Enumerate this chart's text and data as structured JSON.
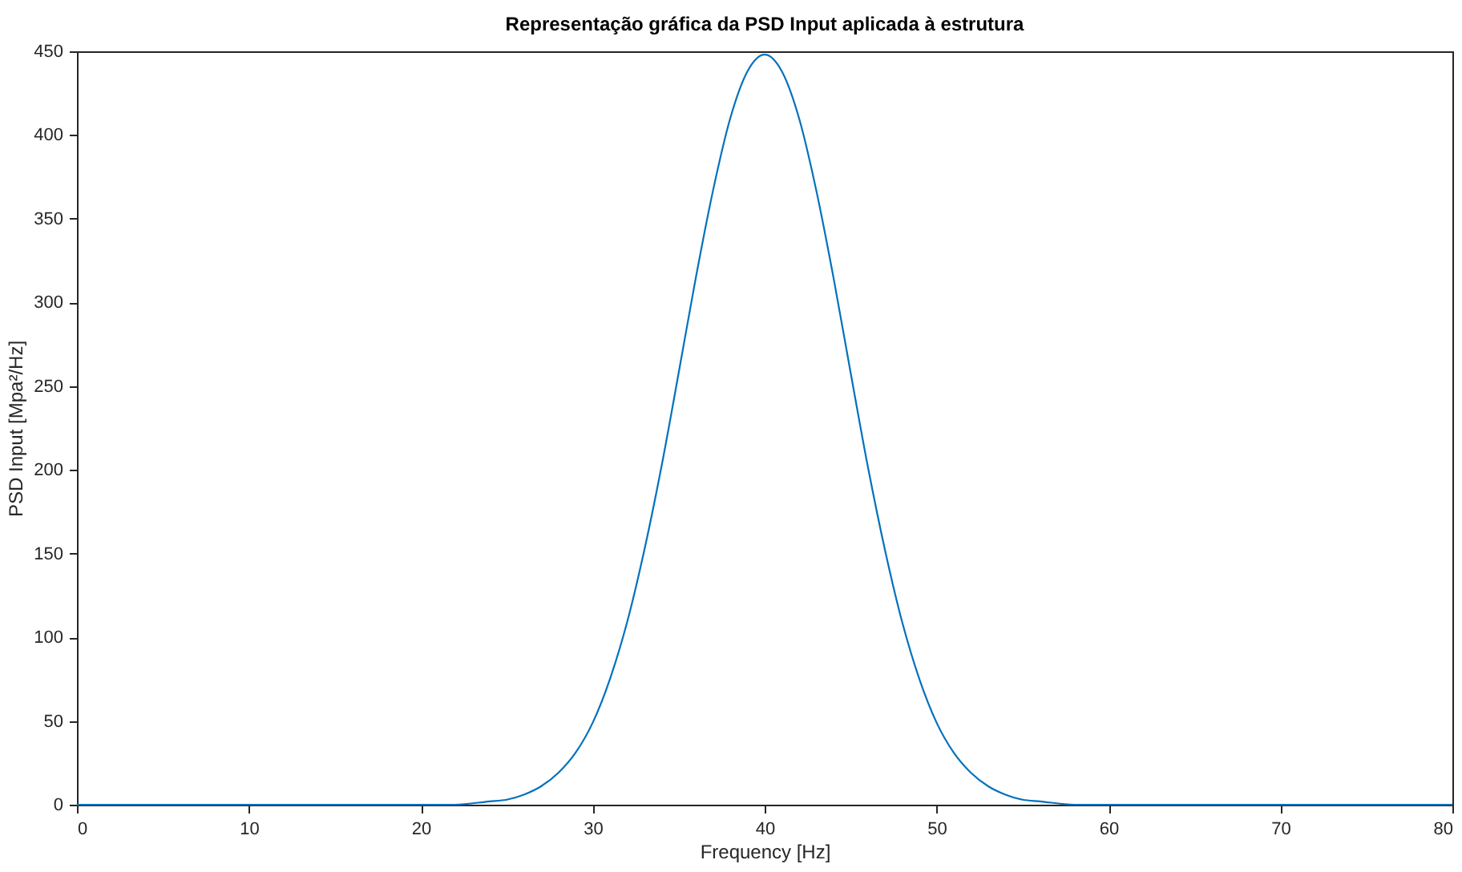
{
  "chart_data": {
    "type": "line",
    "title": "Representação gráfica da PSD Input aplicada à estrutura",
    "xlabel": "Frequency [Hz]",
    "ylabel": "PSD Input [Mpa²/Hz]",
    "x": [
      0,
      5,
      10,
      15,
      20,
      22,
      24,
      25,
      26,
      27,
      28,
      29,
      30,
      31,
      32,
      33,
      34,
      35,
      36,
      37,
      38,
      39,
      40,
      41,
      42,
      43,
      44,
      45,
      46,
      47,
      48,
      49,
      50,
      51,
      52,
      53,
      54,
      55,
      56,
      58,
      60,
      65,
      70,
      75,
      80
    ],
    "series": [
      {
        "color": "#0072bd",
        "values": [
          0,
          0,
          0,
          0,
          0,
          0,
          2,
          3,
          6,
          11,
          19,
          31,
          49,
          75,
          109,
          152,
          202,
          258,
          315,
          367,
          410,
          438,
          448,
          438,
          410,
          367,
          315,
          258,
          202,
          152,
          109,
          75,
          49,
          31,
          19,
          11,
          6,
          3,
          2,
          0,
          0,
          0,
          0,
          0,
          0
        ]
      }
    ],
    "xlim": [
      0,
      80
    ],
    "xticks": [
      0,
      10,
      20,
      30,
      40,
      50,
      60,
      70,
      80
    ],
    "ylim": [
      0,
      450
    ],
    "yticks": [
      0,
      50,
      100,
      150,
      200,
      250,
      300,
      350,
      400,
      450
    ],
    "grid": false,
    "marker": "none",
    "line_style": "solid"
  }
}
